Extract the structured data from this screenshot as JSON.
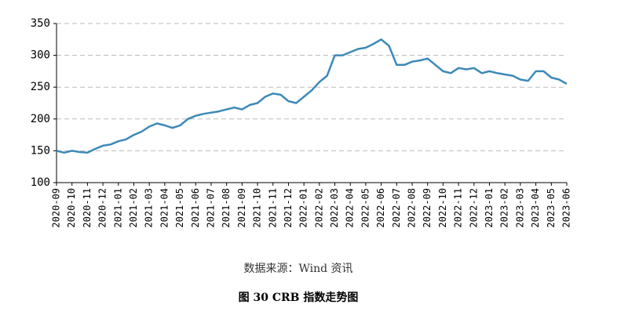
{
  "chart_data": {
    "type": "line",
    "categories": [
      "2020-09",
      null,
      "2020-10",
      null,
      "2020-11",
      null,
      "2020-12",
      null,
      "2021-01",
      null,
      "2021-02",
      null,
      "2021-03",
      null,
      "2021-04",
      null,
      "2021-05",
      null,
      "2021-06",
      null,
      "2021-07",
      null,
      "2021-08",
      null,
      "2021-09",
      null,
      "2021-10",
      null,
      "2021-11",
      null,
      "2021-12",
      null,
      "2022-01",
      null,
      "2022-02",
      null,
      "2022-03",
      null,
      "2022-04",
      null,
      "2022-05",
      null,
      "2022-06",
      null,
      "2022-07",
      null,
      "2022-08",
      null,
      "2022-09",
      null,
      "2022-10",
      null,
      "2022-11",
      null,
      "2022-12",
      null,
      "2023-01",
      null,
      "2023-02",
      null,
      "2023-03",
      null,
      "2023-04",
      null,
      "2023-05",
      null,
      "2023-06"
    ],
    "values": [
      150,
      147,
      150,
      148,
      147,
      153,
      158,
      160,
      165,
      168,
      175,
      180,
      188,
      193,
      190,
      186,
      190,
      200,
      205,
      208,
      210,
      212,
      215,
      218,
      215,
      222,
      225,
      235,
      240,
      238,
      228,
      225,
      235,
      245,
      258,
      268,
      300,
      300,
      305,
      310,
      312,
      318,
      325,
      315,
      285,
      285,
      290,
      292,
      295,
      285,
      275,
      272,
      280,
      278,
      280,
      272,
      275,
      272,
      270,
      268,
      262,
      260,
      275,
      275,
      265,
      262,
      255
    ],
    "color": "#3d89b8",
    "ylim": [
      100,
      350
    ],
    "yticks": [
      100,
      150,
      200,
      250,
      300,
      350
    ],
    "grid": true,
    "source": "数据来源：Wind 资讯",
    "caption": "图 30   CRB 指数走势图"
  }
}
